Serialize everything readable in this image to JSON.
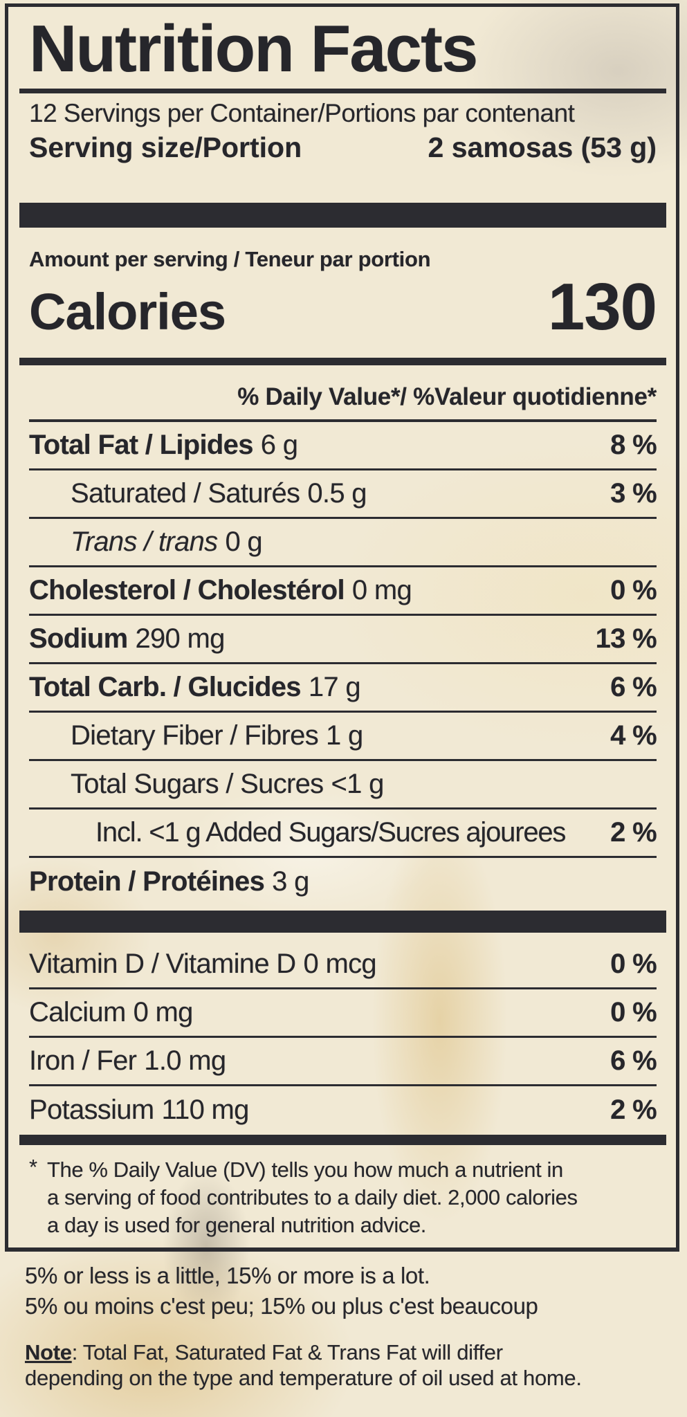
{
  "colors": {
    "background": "#f1e9d4",
    "ink": "#26262b",
    "bar": "#2c2c31"
  },
  "header": {
    "title": "Nutrition Facts",
    "servings_per_container": "12 Servings per Container/Portions par contenant",
    "serving_size_label": "Serving size/Portion",
    "serving_size_value": "2 samosas (53 g)"
  },
  "calories": {
    "amount_per_serving": "Amount per serving / Teneur par portion",
    "label": "Calories",
    "value": "130"
  },
  "daily_value_header": "% Daily Value*/ %Valeur quotidienne*",
  "nutrients": {
    "rows": [
      {
        "name": "Total Fat / Lipides",
        "amount": "6 g",
        "dv": "8 %"
      },
      {
        "name": "Saturated / Saturés",
        "amount": "0.5 g",
        "dv": "3 %"
      },
      {
        "name": "Trans / trans",
        "amount": "0 g",
        "dv": ""
      },
      {
        "name": "Cholesterol / Cholestérol",
        "amount": "0 mg",
        "dv": "0 %"
      },
      {
        "name": "Sodium",
        "amount": "290 mg",
        "dv": "13 %"
      },
      {
        "name": "Total Carb. / Glucides",
        "amount": "17 g",
        "dv": "6 %"
      },
      {
        "name": "Dietary Fiber / Fibres",
        "amount": "1 g",
        "dv": "4 %"
      },
      {
        "name": "Total Sugars / Sucres",
        "amount": "<1 g",
        "dv": ""
      },
      {
        "name": "Incl. <1 g Added Sugars/Sucres ajourees",
        "amount": "",
        "dv": "2 %"
      },
      {
        "name": "Protein / Protéines",
        "amount": "3 g",
        "dv": ""
      }
    ]
  },
  "micronutrients": {
    "rows": [
      {
        "name": "Vitamin D / Vitamine D",
        "amount": "0 mcg",
        "dv": "0 %"
      },
      {
        "name": "Calcium",
        "amount": "0 mg",
        "dv": "0 %"
      },
      {
        "name": "Iron / Fer",
        "amount": "1.0 mg",
        "dv": "6 %"
      },
      {
        "name": "Potassium",
        "amount": "110 mg",
        "dv": "2 %"
      }
    ]
  },
  "footnote": {
    "asterisk": "*",
    "lines": [
      "The % Daily Value (DV) tells you how much a nutrient in",
      "a serving of food contributes to a daily diet. 2,000 calories",
      "a day is used for general nutrition advice."
    ]
  },
  "footer": {
    "line_en": "5% or less is a little, 15% or more is a lot.",
    "line_fr": "5% ou moins c'est peu; 15% ou plus c'est beaucoup",
    "note_label": "Note",
    "note_rest": ": Total Fat, Saturated Fat & Trans Fat will differ",
    "note_line2": "depending on the type and temperature of oil used at home."
  }
}
